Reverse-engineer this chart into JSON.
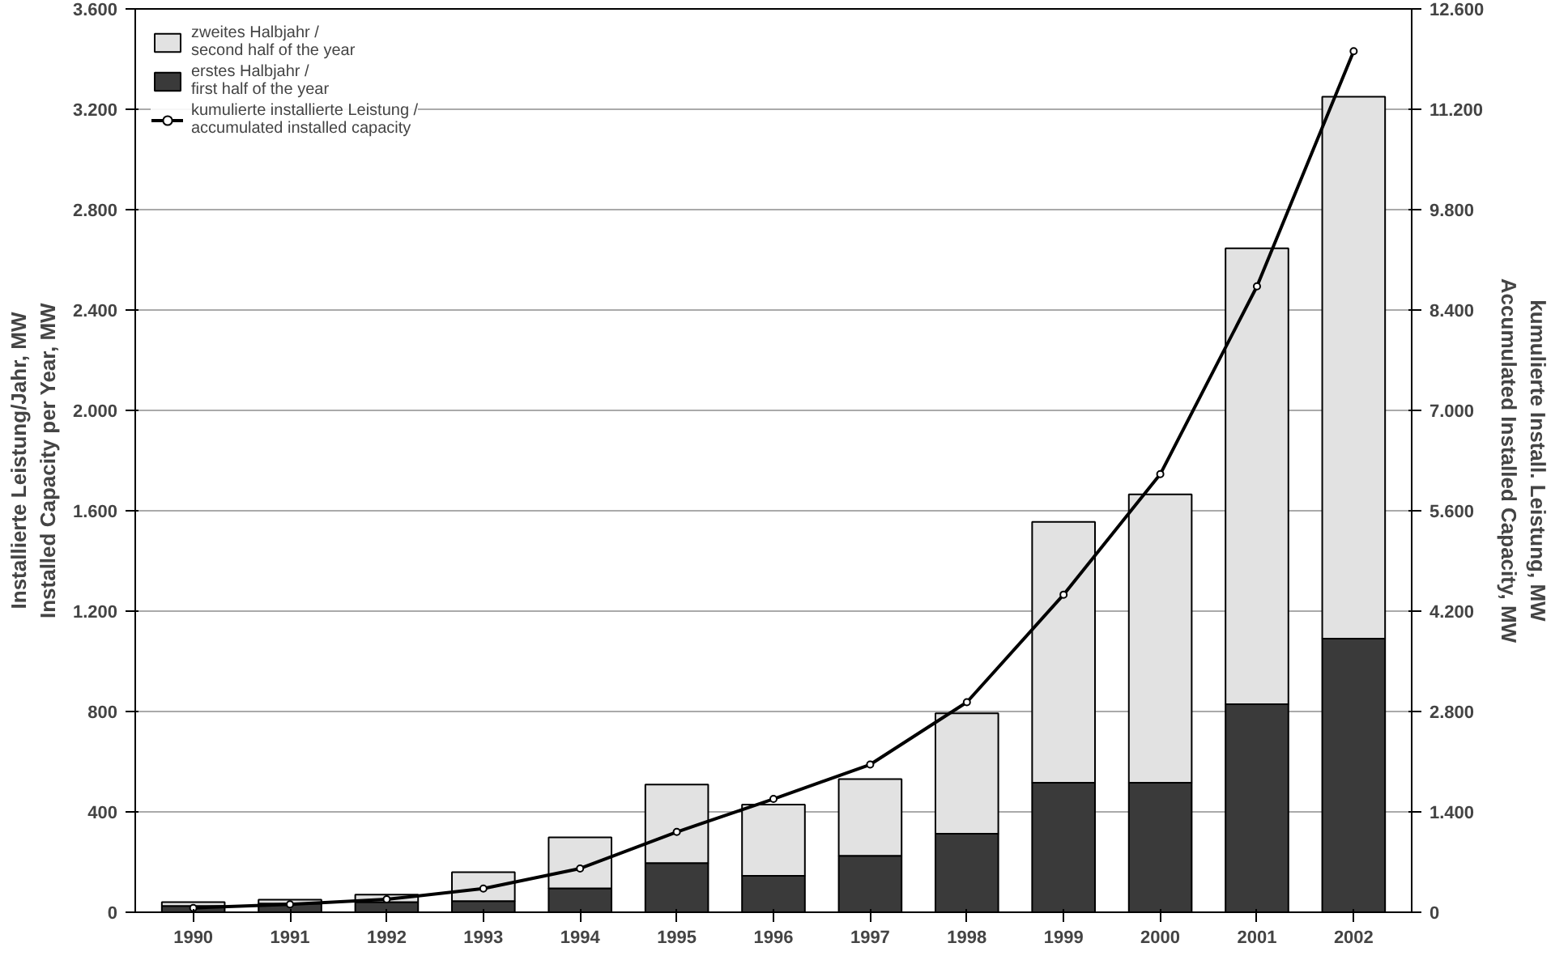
{
  "chart_data": {
    "type": "bar",
    "stacked": true,
    "categories": [
      "1990",
      "1991",
      "1992",
      "1993",
      "1994",
      "1995",
      "1996",
      "1997",
      "1998",
      "1999",
      "2000",
      "2001",
      "2002"
    ],
    "ylabel": "Installierte Leistung/Jahr, MW\nInstalled Capacity per Year, MW",
    "y2label": "kumulierte Install. Leistung, MW\nAccumulated Installed Capacity, MW",
    "ylim": [
      0,
      3600
    ],
    "yticks": [
      0,
      400,
      800,
      {
        "value": 1200,
        "label": "1.200"
      },
      {
        "value": 1600,
        "label": "1.600"
      },
      {
        "value": 2000,
        "label": "2.000"
      },
      {
        "value": 2400,
        "label": "2.400"
      },
      {
        "value": 2800,
        "label": "2.800"
      },
      {
        "value": 3200,
        "label": "3.200"
      },
      {
        "value": 3600,
        "label": "3.600"
      }
    ],
    "y2lim": [
      0,
      12600
    ],
    "y2ticks": [
      0,
      {
        "value": 1400,
        "label": "1.400"
      },
      {
        "value": 2800,
        "label": "2.800"
      },
      {
        "value": 4200,
        "label": "4.200"
      },
      {
        "value": 5600,
        "label": "5.600"
      },
      {
        "value": 7000,
        "label": "7.000"
      },
      {
        "value": 8400,
        "label": "8.400"
      },
      {
        "value": 9800,
        "label": "9.800"
      },
      {
        "value": 11200,
        "label": "11.200"
      },
      {
        "value": 12600,
        "label": "12.600"
      }
    ],
    "grid": "y",
    "legend": "top left",
    "series": [
      {
        "name": "erstes Halbjahr /\nfirst half of the year",
        "color": "#3a3a3a",
        "values": [
          25,
          35,
          40,
          44,
          95,
          196,
          145,
          225,
          313,
          516,
          516,
          829,
          1090
        ]
      },
      {
        "name": "zweites Halbjahr /\nsecond half of the year",
        "color": "#e2e2e2",
        "values": [
          15,
          15,
          30,
          116,
          203,
          313,
          284,
          306,
          480,
          1040,
          1149,
          1817,
          2160
        ]
      },
      {
        "name": "kumulierte installierte Leistung /\naccumulated installed capacity",
        "type": "line",
        "axis": "y2",
        "marker": "circle",
        "color": "#000000",
        "values": [
          60,
          110,
          180,
          330,
          610,
          1120,
          1580,
          2060,
          2930,
          4430,
          6110,
          8730,
          12010
        ]
      }
    ]
  }
}
